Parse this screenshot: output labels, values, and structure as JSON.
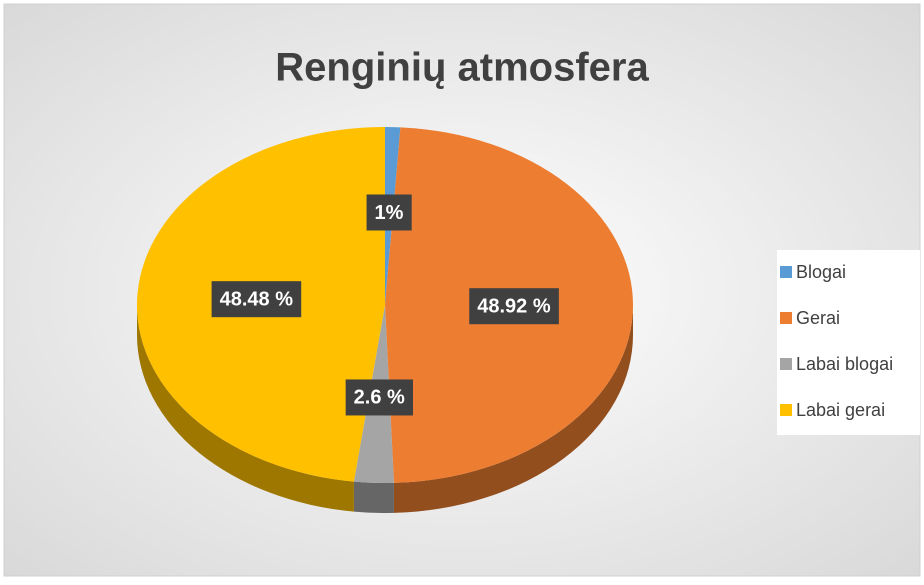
{
  "chart_data": {
    "type": "pie",
    "title": "Renginių atmosfera",
    "categories": [
      "Blogai",
      "Gerai",
      "Labai blogai",
      "Labai gerai"
    ],
    "values": [
      1,
      48.92,
      2.6,
      48.48
    ],
    "value_labels": [
      "1%",
      "48.92 %",
      "2.6 %",
      "48.48 %"
    ],
    "colors": [
      "#5b9bd5",
      "#ed7d31",
      "#a5a5a5",
      "#ffc000"
    ],
    "legend": "right"
  }
}
